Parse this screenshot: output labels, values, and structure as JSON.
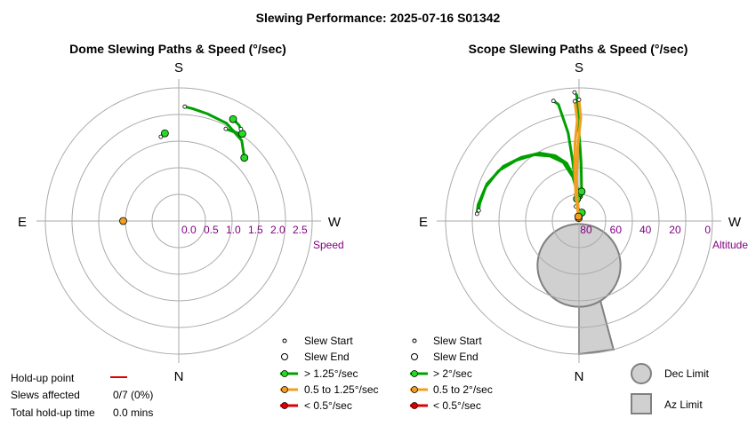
{
  "title": "Slewing Performance: 2025-07-16 S01342",
  "colors": {
    "fast": "#00a000",
    "fast_marker": "#22dd22",
    "medium": "#f0a020",
    "slow": "#dd0000",
    "ring": "#aaaaaa",
    "axis_label": "#800080",
    "limit_fill": "#d0d0d0",
    "limit_stroke": "#808080"
  },
  "chart_data": [
    {
      "type": "polar-line",
      "title": "Dome Slewing Paths & Speed (°/sec)",
      "compass": {
        "top": "S",
        "bottom": "N",
        "left": "E",
        "right": "W"
      },
      "radial_axis": {
        "label": "Speed",
        "ticks": [
          "2.5",
          "2.0",
          "1.5",
          "1.0",
          "0.5",
          "0.0"
        ],
        "min": 0,
        "max": 3,
        "inverted": true
      },
      "slews": [
        {
          "speed_class": "fast",
          "path": [
            [
              226,
              2.05
            ],
            [
              218,
              2.3
            ],
            [
              206,
              2.45
            ],
            [
              195,
              2.5
            ],
            [
              187,
              2.55
            ],
            [
              183,
              2.58
            ]
          ]
        },
        {
          "speed_class": "fast",
          "path": [
            [
              216,
              2.43
            ],
            [
              213,
              2.37
            ],
            [
              207,
              2.33
            ]
          ]
        },
        {
          "speed_class": "fast",
          "path": [
            [
              208,
              2.6
            ],
            [
              212,
              2.55
            ],
            [
              214,
              2.5
            ]
          ]
        },
        {
          "speed_class": "fast",
          "path": [
            [
              171,
              2.0
            ],
            [
              168,
              1.94
            ]
          ]
        },
        {
          "speed_class": "medium",
          "path": [
            [
              90,
              1.25
            ],
            [
              90,
              1.27
            ]
          ]
        }
      ],
      "legend": {
        "entries": [
          {
            "label": "Slew Start",
            "marker": "small-circle"
          },
          {
            "label": "Slew End",
            "marker": "circle"
          },
          {
            "label": "> 1.25°/sec",
            "color": "fast"
          },
          {
            "label": "0.5 to 1.25°/sec",
            "color": "medium"
          },
          {
            "label": "< 0.5°/sec",
            "color": "slow"
          }
        ]
      },
      "holdup": {
        "point_label": "Hold-up point",
        "slews_label": "Slews affected",
        "slews_value": "0/7 (0%)",
        "time_label": "Total hold-up time",
        "time_value": "0.0 mins"
      }
    },
    {
      "type": "polar-line",
      "title": "Scope Slewing Paths & Speed (°/sec)",
      "compass": {
        "top": "S",
        "bottom": "N",
        "left": "E",
        "right": "W"
      },
      "radial_axis": {
        "label": "Altitude",
        "ticks": [
          "80",
          "60",
          "40",
          "20",
          "0"
        ],
        "min": 90,
        "max": 0
      },
      "slews": [
        {
          "speed_class": "fast",
          "path": [
            [
              180,
              73
            ],
            [
              175,
              62
            ],
            [
              168,
              50
            ],
            [
              160,
              43
            ],
            [
              150,
              37
            ],
            [
              138,
              32
            ],
            [
              126,
              27
            ],
            [
              112,
              23
            ],
            [
              99,
              21
            ],
            [
              94,
              21
            ]
          ]
        },
        {
          "speed_class": "fast",
          "path": [
            [
              178,
              72
            ],
            [
              172,
              60
            ],
            [
              165,
              49
            ],
            [
              156,
              42
            ],
            [
              146,
              36
            ],
            [
              134,
              31
            ],
            [
              122,
              26
            ],
            [
              110,
              23
            ],
            [
              100,
              22
            ],
            [
              96,
              22
            ]
          ]
        },
        {
          "speed_class": "fast",
          "path": [
            [
              185,
              70
            ],
            [
              182,
              50
            ],
            [
              180,
              30
            ],
            [
              179,
              5
            ],
            [
              178,
              3
            ]
          ]
        },
        {
          "speed_class": "fast",
          "path": [
            [
              175,
              75
            ],
            [
              174,
              50
            ],
            [
              173,
              30
            ],
            [
              170,
              10
            ],
            [
              168,
              7
            ]
          ]
        },
        {
          "speed_class": "fast",
          "path": [
            [
              198,
              84
            ],
            [
              168,
              80
            ]
          ]
        },
        {
          "speed_class": "medium",
          "path": [
            [
              174,
              88
            ],
            [
              175,
              75
            ],
            [
              177,
              60
            ],
            [
              179,
              40
            ],
            [
              181,
              20
            ],
            [
              180,
              8
            ]
          ]
        },
        {
          "speed_class": "medium",
          "path": [
            [
              172,
              87
            ],
            [
              173,
              72
            ],
            [
              175,
              55
            ],
            [
              177,
              38
            ],
            [
              179,
              22
            ],
            [
              178,
              9
            ]
          ]
        }
      ],
      "dec_limit": {
        "center": [
          0,
          60
        ],
        "radius": 28
      },
      "az_limit": {
        "az_from": 0,
        "az_to": 15,
        "alt_from": 60,
        "alt_to": 0
      },
      "legend": {
        "entries": [
          {
            "label": "Slew Start",
            "marker": "small-circle"
          },
          {
            "label": "Slew End",
            "marker": "circle"
          },
          {
            "label": "> 2°/sec",
            "color": "fast"
          },
          {
            "label": "0.5 to 2°/sec",
            "color": "medium"
          },
          {
            "label": "< 0.5°/sec",
            "color": "slow"
          }
        ]
      },
      "limits_legend": {
        "dec_label": "Dec Limit",
        "az_label": "Az Limit"
      }
    }
  ]
}
